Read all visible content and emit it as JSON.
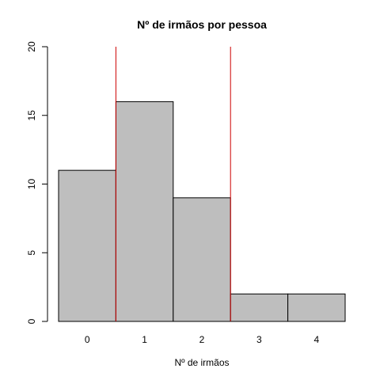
{
  "chart_data": {
    "type": "bar",
    "title": "Nº de irmãos por pessoa",
    "xlabel": "Nº de irmãos",
    "ylabel": "",
    "categories": [
      "0",
      "1",
      "2",
      "3",
      "4"
    ],
    "values": [
      11,
      16,
      9,
      2,
      2
    ],
    "ylim": [
      0,
      20
    ],
    "yticks": [
      0,
      5,
      10,
      15,
      20
    ],
    "grid": false,
    "bar_color": "#bebebe",
    "reference_lines": {
      "color": "#cc0000",
      "x_between": [
        [
          0,
          1
        ],
        [
          2,
          3
        ]
      ]
    }
  }
}
